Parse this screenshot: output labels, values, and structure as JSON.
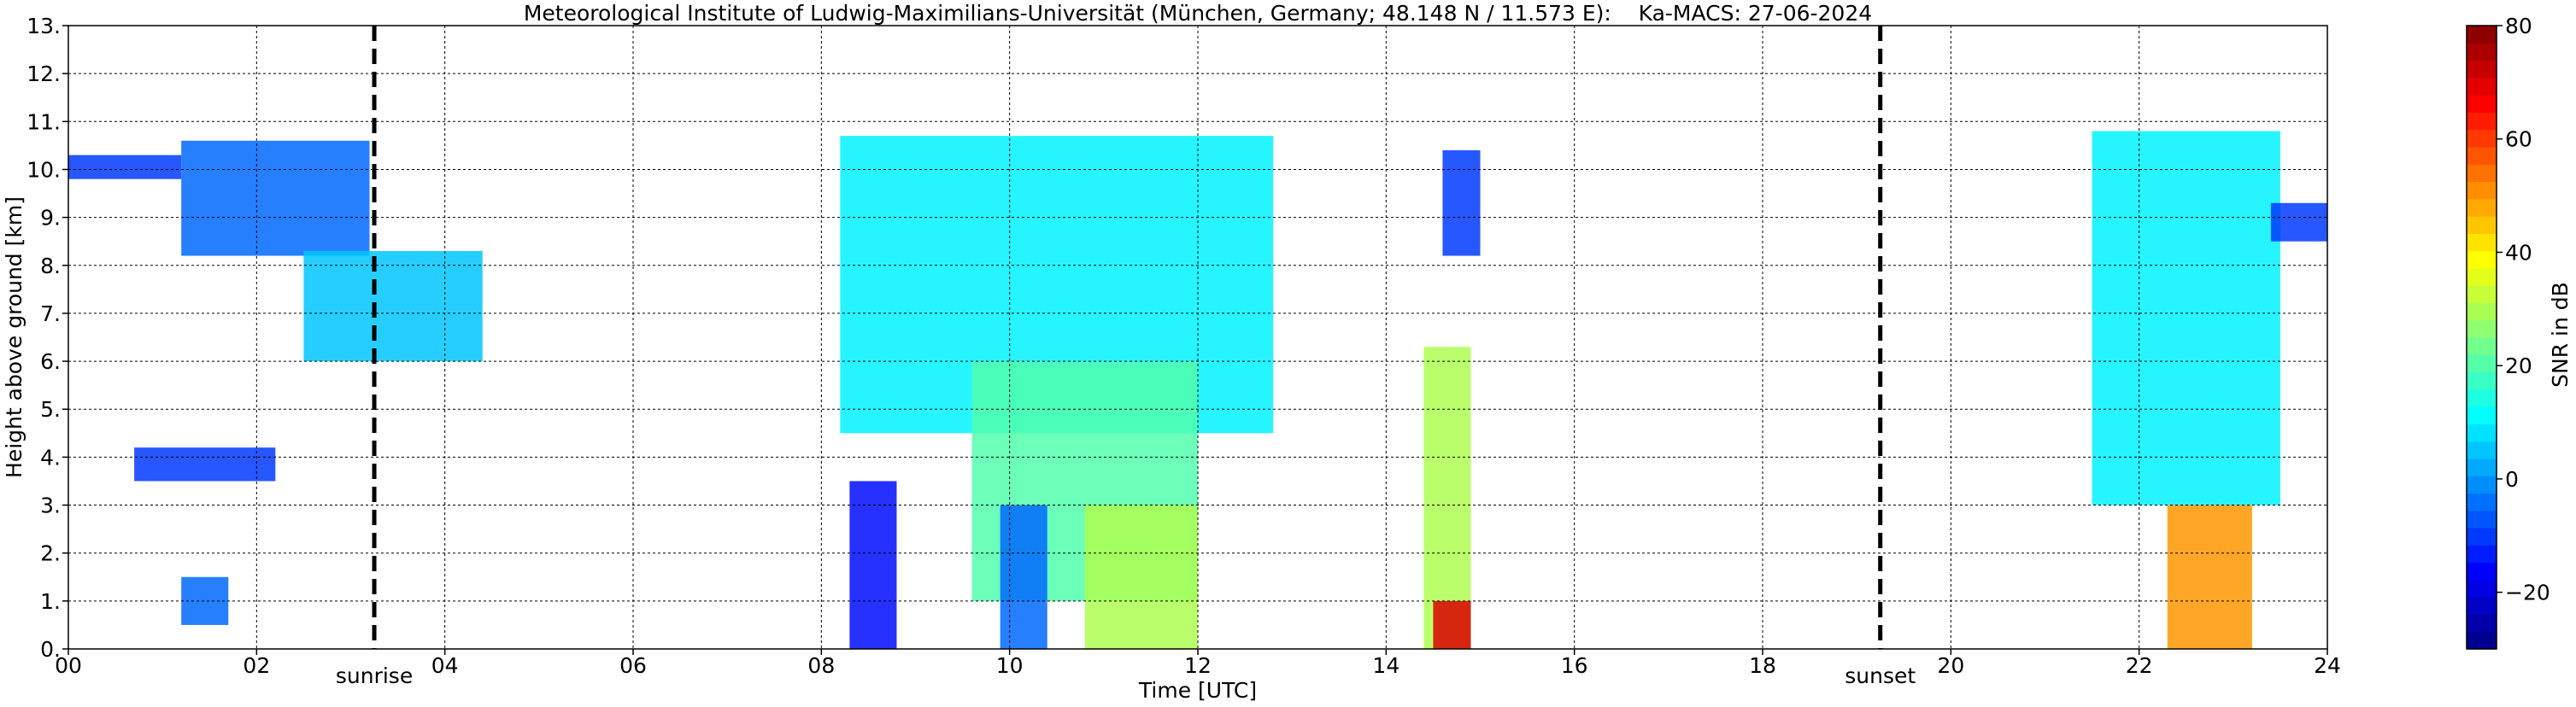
{
  "chart_data": {
    "type": "heatmap",
    "title": "Meteorological Institute of Ludwig-Maximilians-Universität (München, Germany; 48.148 N / 11.573 E):    Ka-MACS: 27-06-2024",
    "xlabel": "Time [UTC]",
    "ylabel": "Height above ground [km]",
    "xlim": [
      0,
      24
    ],
    "ylim": [
      0,
      13
    ],
    "x_ticks": [
      {
        "value": 0,
        "label": "00"
      },
      {
        "value": 2,
        "label": "02"
      },
      {
        "value": 4,
        "label": "04"
      },
      {
        "value": 6,
        "label": "06"
      },
      {
        "value": 8,
        "label": "08"
      },
      {
        "value": 10,
        "label": "10"
      },
      {
        "value": 12,
        "label": "12"
      },
      {
        "value": 14,
        "label": "14"
      },
      {
        "value": 16,
        "label": "16"
      },
      {
        "value": 18,
        "label": "18"
      },
      {
        "value": 20,
        "label": "20"
      },
      {
        "value": 22,
        "label": "22"
      },
      {
        "value": 24,
        "label": "24"
      }
    ],
    "y_ticks": [
      {
        "value": 0,
        "label": "0."
      },
      {
        "value": 1,
        "label": "1."
      },
      {
        "value": 2,
        "label": "2."
      },
      {
        "value": 3,
        "label": "3."
      },
      {
        "value": 4,
        "label": "4."
      },
      {
        "value": 5,
        "label": "5."
      },
      {
        "value": 6,
        "label": "6."
      },
      {
        "value": 7,
        "label": "7."
      },
      {
        "value": 8,
        "label": "8."
      },
      {
        "value": 9,
        "label": "9."
      },
      {
        "value": 10,
        "label": "10."
      },
      {
        "value": 11,
        "label": "11."
      },
      {
        "value": 12,
        "label": "12."
      },
      {
        "value": 13,
        "label": "13."
      }
    ],
    "grid": true,
    "vertical_markers": [
      {
        "x": 3.25,
        "label": "sunrise"
      },
      {
        "x": 19.25,
        "label": "sunset"
      }
    ],
    "colorbar": {
      "label": "SNR in dB",
      "range": [
        -30,
        80
      ],
      "ticks": [
        -20,
        0,
        20,
        40,
        60,
        80
      ],
      "tick_labels": [
        "−20",
        "0",
        "20",
        "40",
        "60",
        "80"
      ],
      "colormap": "jet",
      "levels": 36
    },
    "echo_regions": [
      {
        "x": [
          0.0,
          1.2
        ],
        "y": [
          9.8,
          10.3
        ],
        "snr": -10
      },
      {
        "x": [
          1.2,
          3.2
        ],
        "y": [
          8.2,
          10.6
        ],
        "snr": -5
      },
      {
        "x": [
          2.5,
          4.4
        ],
        "y": [
          6.0,
          8.3
        ],
        "snr": 5
      },
      {
        "x": [
          0.7,
          2.2
        ],
        "y": [
          3.5,
          4.2
        ],
        "snr": -10
      },
      {
        "x": [
          1.2,
          1.7
        ],
        "y": [
          0.5,
          1.5
        ],
        "snr": -5
      },
      {
        "x": [
          8.2,
          12.8
        ],
        "y": [
          4.5,
          10.7
        ],
        "snr": 10
      },
      {
        "x": [
          9.6,
          12.0
        ],
        "y": [
          1.0,
          6.0
        ],
        "snr": 20
      },
      {
        "x": [
          10.8,
          12.0
        ],
        "y": [
          0.0,
          3.0
        ],
        "snr": 30
      },
      {
        "x": [
          8.3,
          8.8
        ],
        "y": [
          0.0,
          3.5
        ],
        "snr": -15
      },
      {
        "x": [
          9.9,
          10.4
        ],
        "y": [
          0.0,
          3.0
        ],
        "snr": -5
      },
      {
        "x": [
          14.4,
          14.9
        ],
        "y": [
          0.0,
          6.3
        ],
        "snr": 30
      },
      {
        "x": [
          14.5,
          14.9
        ],
        "y": [
          0.0,
          1.0
        ],
        "snr": 70
      },
      {
        "x": [
          14.6,
          15.0
        ],
        "y": [
          8.2,
          10.4
        ],
        "snr": -10
      },
      {
        "x": [
          21.5,
          23.5
        ],
        "y": [
          3.0,
          10.8
        ],
        "snr": 10
      },
      {
        "x": [
          22.3,
          23.2
        ],
        "y": [
          0.0,
          3.0
        ],
        "snr": 50
      },
      {
        "x": [
          23.4,
          24.0
        ],
        "y": [
          8.5,
          9.3
        ],
        "snr": -10
      }
    ]
  }
}
